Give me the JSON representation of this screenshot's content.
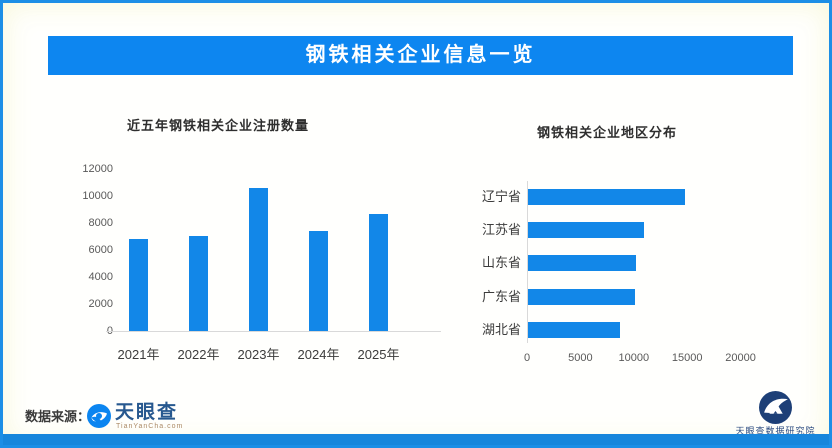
{
  "banner": {
    "title": "钢铁相关企业信息一览",
    "bg_color": "#0d86f0",
    "text_color": "#ffffff"
  },
  "colors": {
    "bar_blue": "#1287e8",
    "frame_border": "#1c8ee6",
    "bottom_strip": "#1786dc",
    "axis_line": "#d9d9d9",
    "tick_label": "#595959",
    "category_label": "#3c3c3c"
  },
  "chart_data": [
    {
      "type": "bar",
      "title": "近五年钢铁相关企业注册数量",
      "categories": [
        "2021年",
        "2022年",
        "2023年",
        "2024年",
        "2025年"
      ],
      "values": [
        6850,
        7050,
        10600,
        7400,
        8700
      ],
      "ylim": [
        0,
        12000
      ],
      "yticks": [
        0,
        2000,
        4000,
        6000,
        8000,
        10000,
        12000
      ],
      "xlabel": "",
      "ylabel": "",
      "grid": false,
      "legend": false,
      "bar_color": "#1287e8"
    },
    {
      "type": "bar-horizontal",
      "title": "钢铁相关企业地区分布",
      "categories": [
        "辽宁省",
        "江苏省",
        "山东省",
        "广东省",
        "湖北省"
      ],
      "values": [
        14700,
        10900,
        10100,
        10000,
        8600
      ],
      "xlim": [
        0,
        20000
      ],
      "xticks": [
        0,
        5000,
        10000,
        15000,
        20000
      ],
      "xlabel": "",
      "ylabel": "",
      "grid": false,
      "legend": false,
      "bar_color": "#1287e8"
    }
  ],
  "footer": {
    "source_label": "数据来源：",
    "tianyancha": {
      "icon": "eye-swoosh-circle-icon",
      "wordmark": "天眼查",
      "url_text": "TianYanCha.com"
    },
    "institute": {
      "icon": "navy-circle-mountain-icon",
      "name": "天眼查数据研究院"
    }
  }
}
